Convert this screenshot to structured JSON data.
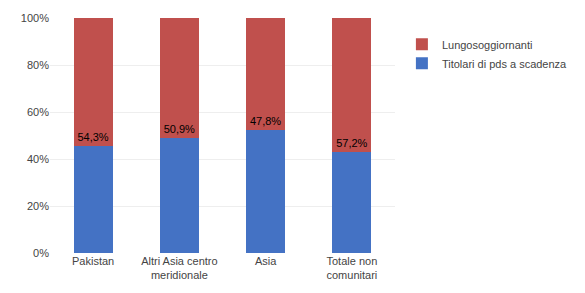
{
  "chart_data": {
    "type": "bar",
    "stacked": true,
    "categories": [
      "Pakistan",
      "Altri Asia centro\nmeridionale",
      "Asia",
      "Totale non\ncomunitari"
    ],
    "series": [
      {
        "name": "Titolari di pds a scadenza",
        "color": "#4472C4",
        "values": [
          45.7,
          49.1,
          52.2,
          42.8
        ]
      },
      {
        "name": "Lungosoggiornanti",
        "color": "#C0504D",
        "values": [
          54.3,
          50.9,
          47.8,
          57.2
        ],
        "value_labels": [
          "54,3%",
          "50,9%",
          "47,8%",
          "57,2%"
        ],
        "data_labels": true
      }
    ],
    "ylim": [
      0,
      100
    ],
    "yticks": [
      {
        "value": 0,
        "label": "0%"
      },
      {
        "value": 20,
        "label": "20%"
      },
      {
        "value": 40,
        "label": "40%"
      },
      {
        "value": 60,
        "label": "60%"
      },
      {
        "value": 80,
        "label": "80%"
      },
      {
        "value": 100,
        "label": "100%"
      }
    ],
    "grid": true,
    "legend": "right"
  }
}
